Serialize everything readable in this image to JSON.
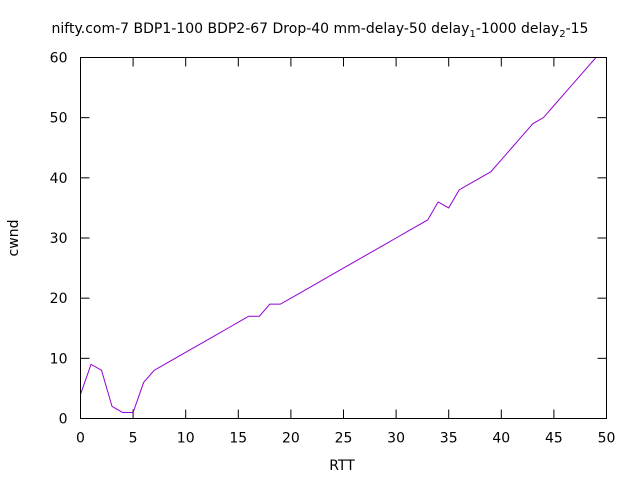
{
  "chart_data": {
    "type": "line",
    "title": {
      "segments": [
        {
          "text": "nifty.com-7 BDP1-100 BDP2-67 Drop-40 mm-delay-50 delay",
          "sub": false
        },
        {
          "text": "1",
          "sub": true
        },
        {
          "text": "-1000 delay",
          "sub": false
        },
        {
          "text": "2",
          "sub": true
        },
        {
          "text": "-15",
          "sub": false
        }
      ]
    },
    "xlabel": "RTT",
    "ylabel": "cwnd",
    "xlim": [
      0,
      50
    ],
    "ylim": [
      0,
      60
    ],
    "xticks": [
      0,
      5,
      10,
      15,
      20,
      25,
      30,
      35,
      40,
      45,
      50
    ],
    "yticks": [
      0,
      10,
      20,
      30,
      40,
      50,
      60
    ],
    "grid": false,
    "legend": "none",
    "series": [
      {
        "color": "#9400d3",
        "x": [
          0,
          1,
          2,
          3,
          4,
          5,
          6,
          7,
          8,
          9,
          10,
          11,
          12,
          13,
          14,
          15,
          16,
          17,
          18,
          19,
          20,
          21,
          22,
          23,
          24,
          25,
          26,
          27,
          28,
          29,
          30,
          31,
          32,
          33,
          34,
          35,
          36,
          37,
          38,
          39,
          40,
          41,
          42,
          43,
          44,
          45,
          46,
          47,
          48,
          49
        ],
        "y": [
          4,
          9,
          8,
          2,
          1,
          1,
          6,
          8,
          9,
          10,
          11,
          12,
          13,
          14,
          15,
          16,
          17,
          17,
          19,
          19,
          20,
          21,
          22,
          23,
          24,
          25,
          26,
          27,
          28,
          29,
          30,
          31,
          32,
          33,
          36,
          35,
          38,
          39,
          40,
          41,
          43,
          45,
          47,
          49,
          50,
          52,
          54,
          56,
          58,
          60
        ]
      }
    ]
  }
}
